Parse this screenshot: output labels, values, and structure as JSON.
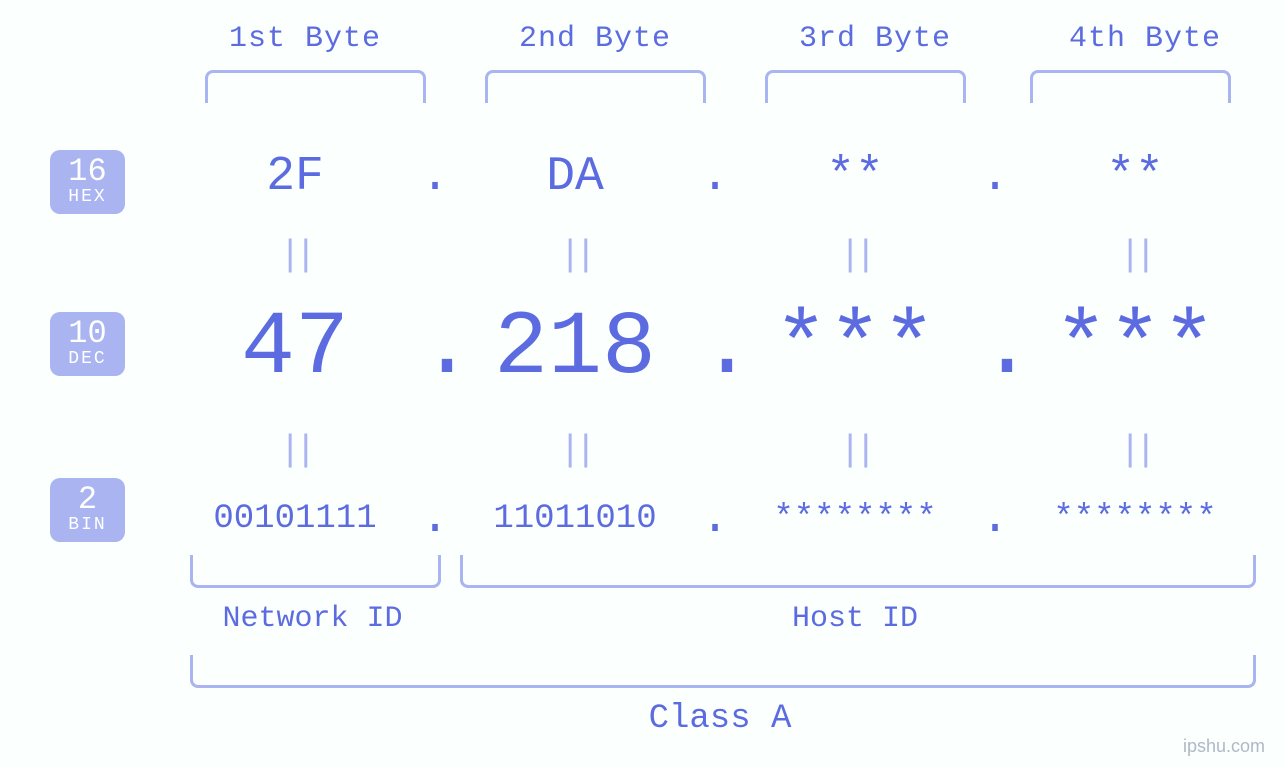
{
  "colors": {
    "accent": "#5c6ce0",
    "light": "#a9b4f0",
    "background": "#fbfffd",
    "badge_text": "#ffffff",
    "watermark": "#b0b8c8"
  },
  "typography": {
    "font_family": "Courier New, monospace",
    "byte_label_fontsize": 30,
    "hex_fontsize": 48,
    "dec_fontsize": 90,
    "bin_fontsize": 34,
    "eq_fontsize": 36,
    "bottom_label_fontsize": 30,
    "class_label_fontsize": 34,
    "badge_num_fontsize": 32,
    "badge_txt_fontsize": 18
  },
  "byte_headers": [
    "1st Byte",
    "2nd Byte",
    "3rd Byte",
    "4th Byte"
  ],
  "bases": {
    "hex": {
      "number": "16",
      "label": "HEX"
    },
    "dec": {
      "number": "10",
      "label": "DEC"
    },
    "bin": {
      "number": "2",
      "label": "BIN"
    }
  },
  "values": {
    "hex": [
      "2F",
      "DA",
      "**",
      "**"
    ],
    "dec": [
      "47",
      "218",
      "***",
      "***"
    ],
    "bin": [
      "00101111",
      "11011010",
      "********",
      "********"
    ]
  },
  "separators": {
    "dot": ".",
    "equals": "||"
  },
  "bottom": {
    "network_label": "Network ID",
    "host_label": "Host ID",
    "class_label": "Class A"
  },
  "watermark": "ipshu.com"
}
